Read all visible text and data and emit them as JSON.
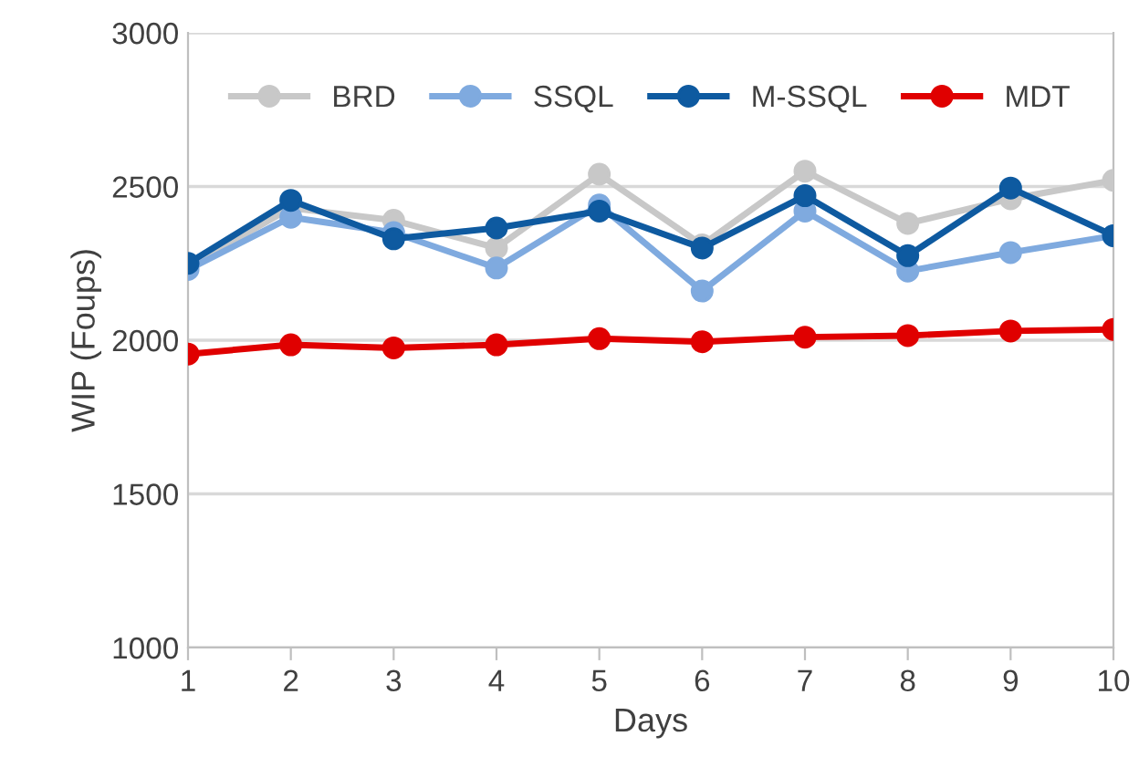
{
  "chart_data": {
    "type": "line",
    "xlabel": "Days",
    "ylabel": "WIP (Foups)",
    "x": [
      1,
      2,
      3,
      4,
      5,
      6,
      7,
      8,
      9,
      10
    ],
    "series": [
      {
        "name": "BRD",
        "color": "#c8c8c8",
        "values": [
          2240,
          2430,
          2390,
          2300,
          2540,
          2310,
          2550,
          2380,
          2460,
          2520
        ]
      },
      {
        "name": "SSQL",
        "color": "#7faadf",
        "values": [
          2230,
          2400,
          2350,
          2235,
          2440,
          2160,
          2420,
          2225,
          2285,
          2340
        ]
      },
      {
        "name": "M-SSQL",
        "color": "#0e5aa0",
        "values": [
          2250,
          2455,
          2330,
          2365,
          2420,
          2300,
          2470,
          2275,
          2495,
          2340
        ]
      },
      {
        "name": "MDT",
        "color": "#e00000",
        "values": [
          1955,
          1985,
          1975,
          1985,
          2005,
          1995,
          2010,
          2015,
          2030,
          2035
        ]
      }
    ],
    "xlim": [
      1,
      10
    ],
    "xticks": [
      1,
      2,
      3,
      4,
      5,
      6,
      7,
      8,
      9,
      10
    ],
    "ylim": [
      1000,
      3000
    ],
    "yticks": [
      1000,
      1500,
      2000,
      2500,
      3000
    ],
    "grid": "y",
    "legend": "top",
    "marker": "circle",
    "line_style": "solid"
  }
}
